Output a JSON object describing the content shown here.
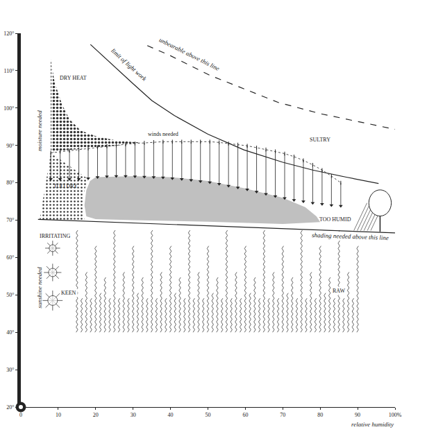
{
  "chart_data": {
    "type": "line",
    "color": "#222222",
    "grid": false,
    "xlim": [
      0,
      100
    ],
    "xticks": [
      0,
      10,
      20,
      30,
      40,
      50,
      60,
      70,
      80,
      90,
      {
        "value": 100,
        "label": "100%"
      }
    ],
    "ylim": [
      20,
      120
    ],
    "yticks": [
      {
        "value": 20,
        "label": "20°"
      },
      {
        "value": 30,
        "label": "30°"
      },
      {
        "value": 40,
        "label": "40°"
      },
      {
        "value": 50,
        "label": "50°"
      },
      {
        "value": 60,
        "label": "60°"
      },
      {
        "value": 70,
        "label": "70°"
      },
      {
        "value": 80,
        "label": "80°"
      },
      {
        "value": 90,
        "label": "90°"
      },
      {
        "value": 100,
        "label": "100°"
      },
      {
        "value": 110,
        "label": "110°"
      },
      {
        "value": 120,
        "label": "120°"
      }
    ],
    "x_label": "relative humidity",
    "series": [
      {
        "name": "limit of light work",
        "line_style": "solid",
        "x": [
          18.6,
          25,
          30,
          35,
          41,
          50,
          59.6,
          70,
          78,
          87,
          95.6
        ],
        "y": [
          117,
          111,
          106.5,
          102,
          98,
          93,
          88.8,
          85.5,
          83.4,
          81.5,
          79.8
        ],
        "label": {
          "x": 29,
          "y": 111.5
        }
      },
      {
        "name": "unbearable above this line",
        "line_style": "dashed",
        "x": [
          33.8,
          40,
          50.4,
          60,
          68.8,
          80,
          87.3,
          100
        ],
        "y": [
          116.7,
          114,
          108.8,
          105,
          101.5,
          98.5,
          97,
          94.3
        ],
        "label": {
          "x": 45,
          "y": 114.5
        }
      },
      {
        "name": "shading needed above this line",
        "line_style": "solid",
        "x": [
          4.6,
          100
        ],
        "y": [
          70.2,
          66.6
        ],
        "label": {
          "x": 88,
          "y": 65.6
        }
      }
    ],
    "comfort_zone": {
      "color": "#c0c0c0",
      "x": [
        18.5,
        20,
        30,
        40,
        50,
        60,
        70,
        76,
        79,
        80,
        70,
        50,
        30,
        20,
        17.5,
        17,
        17.5,
        18.5
      ],
      "y": [
        80.5,
        81.5,
        81.8,
        81.5,
        80.5,
        78.5,
        76,
        73.5,
        71,
        69.5,
        69,
        69.6,
        70,
        70.3,
        71,
        74,
        78,
        80.5
      ]
    },
    "dry_heat": {
      "x": [
        8,
        8,
        9,
        11,
        13,
        16,
        20,
        26,
        32,
        26,
        20,
        15,
        10,
        8
      ],
      "y": [
        88,
        113,
        107,
        101,
        97,
        94,
        92.5,
        91.2,
        90.8,
        90,
        89.5,
        89,
        88.5,
        88
      ]
    },
    "too_dry": {
      "x": [
        8,
        18,
        17,
        16.5,
        17,
        5,
        8
      ],
      "y": [
        88,
        81,
        78,
        74,
        70,
        70,
        88
      ]
    },
    "winds_needed": {
      "x": [
        8,
        10.5,
        13,
        15.5,
        18,
        20.5,
        23,
        25.5,
        28,
        30.5,
        33,
        35.5,
        38,
        40.5,
        43,
        45.5,
        48,
        50.5,
        53,
        55.5,
        58,
        60.5,
        63,
        65.5,
        68,
        70.5,
        73,
        75.5,
        78,
        80.5,
        83,
        85.5
      ],
      "top": [
        88,
        88.3,
        88.6,
        88.9,
        89.2,
        89.5,
        89.8,
        90,
        90.3,
        90.5,
        90.7,
        90.9,
        91,
        91,
        91,
        91,
        91,
        91,
        90.8,
        90.5,
        90.2,
        89.9,
        89.4,
        88.9,
        88.4,
        87.8,
        87,
        86,
        84.8,
        83.4,
        81.8,
        80
      ],
      "bottom": [
        81,
        81,
        81,
        81,
        81.2,
        81.5,
        81.7,
        81.8,
        81.8,
        81.7,
        81.6,
        81.5,
        81.4,
        81.2,
        81,
        80.7,
        80.4,
        80.1,
        79.7,
        79.2,
        78.7,
        78.2,
        77.6,
        77,
        76.4,
        75.9,
        75.4,
        75,
        74.6,
        74.3,
        74,
        73.8
      ]
    },
    "sunshine_needed": {
      "x": [
        15,
        90
      ],
      "y": [
        40,
        68
      ]
    },
    "annotations": [
      {
        "text": "DRY HEAT",
        "x": 14,
        "y": 108
      },
      {
        "text": "SULTRY",
        "x": 80,
        "y": 91.5
      },
      {
        "text": "winds needed",
        "x": 38,
        "y": 93
      },
      {
        "text": "TOO DRY",
        "x": 12,
        "y": 79
      },
      {
        "text": "TOO HUMID",
        "x": 84,
        "y": 70.2
      },
      {
        "text": "IRRITATING",
        "x": 9,
        "y": 65.8
      },
      {
        "text": "KEEN",
        "x": 12.8,
        "y": 50.5
      },
      {
        "text": "RAW",
        "x": 85,
        "y": 51
      }
    ],
    "vertical_labels": [
      {
        "text": "moisture needed",
        "x": 5,
        "y": 94
      },
      {
        "text": "sunshine needed",
        "x": 5,
        "y": 52
      }
    ]
  }
}
